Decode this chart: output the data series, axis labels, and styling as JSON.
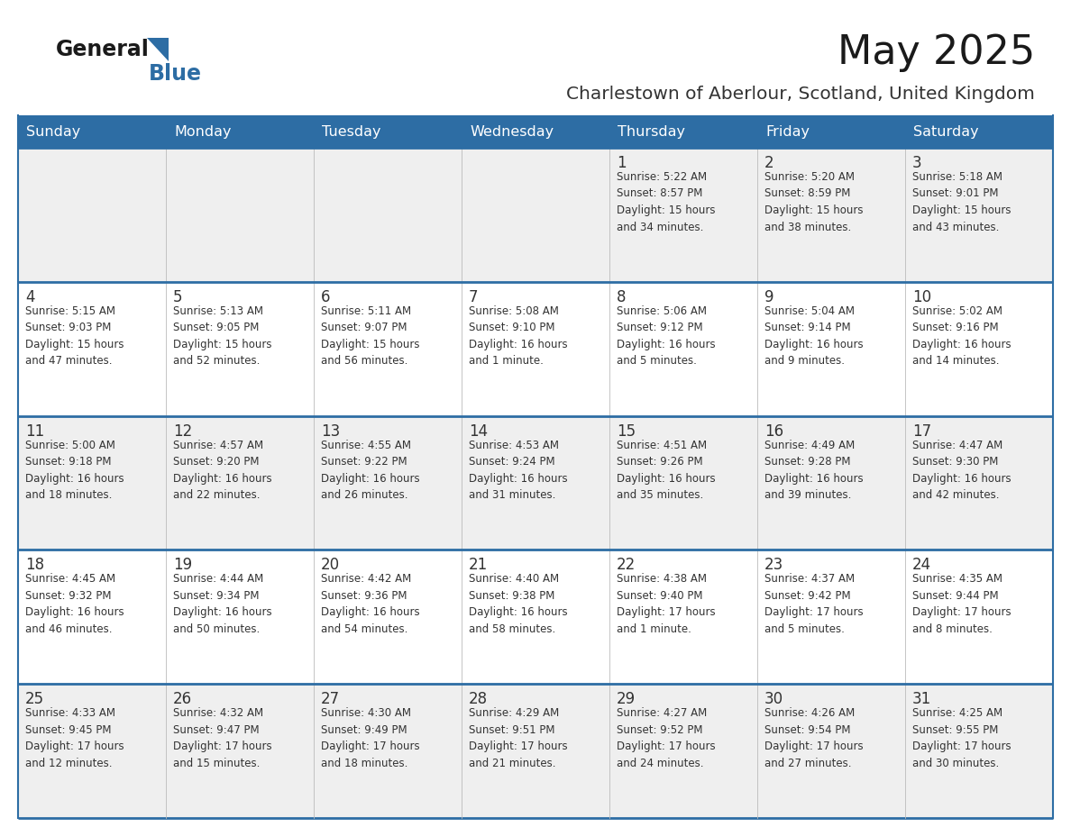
{
  "title": "May 2025",
  "subtitle": "Charlestown of Aberlour, Scotland, United Kingdom",
  "days_of_week": [
    "Sunday",
    "Monday",
    "Tuesday",
    "Wednesday",
    "Thursday",
    "Friday",
    "Saturday"
  ],
  "header_bg": "#2D6DA4",
  "header_text": "#FFFFFF",
  "cell_bg_odd": "#EFEFEF",
  "cell_bg_even": "#FFFFFF",
  "divider_color": "#2D6DA4",
  "text_color": "#333333",
  "title_color": "#1a1a1a",
  "subtitle_color": "#333333",
  "logo_general_color": "#1a1a1a",
  "logo_blue_color": "#2D6DA4",
  "weeks": [
    [
      {
        "day": null,
        "text": ""
      },
      {
        "day": null,
        "text": ""
      },
      {
        "day": null,
        "text": ""
      },
      {
        "day": null,
        "text": ""
      },
      {
        "day": 1,
        "text": "Sunrise: 5:22 AM\nSunset: 8:57 PM\nDaylight: 15 hours\nand 34 minutes."
      },
      {
        "day": 2,
        "text": "Sunrise: 5:20 AM\nSunset: 8:59 PM\nDaylight: 15 hours\nand 38 minutes."
      },
      {
        "day": 3,
        "text": "Sunrise: 5:18 AM\nSunset: 9:01 PM\nDaylight: 15 hours\nand 43 minutes."
      }
    ],
    [
      {
        "day": 4,
        "text": "Sunrise: 5:15 AM\nSunset: 9:03 PM\nDaylight: 15 hours\nand 47 minutes."
      },
      {
        "day": 5,
        "text": "Sunrise: 5:13 AM\nSunset: 9:05 PM\nDaylight: 15 hours\nand 52 minutes."
      },
      {
        "day": 6,
        "text": "Sunrise: 5:11 AM\nSunset: 9:07 PM\nDaylight: 15 hours\nand 56 minutes."
      },
      {
        "day": 7,
        "text": "Sunrise: 5:08 AM\nSunset: 9:10 PM\nDaylight: 16 hours\nand 1 minute."
      },
      {
        "day": 8,
        "text": "Sunrise: 5:06 AM\nSunset: 9:12 PM\nDaylight: 16 hours\nand 5 minutes."
      },
      {
        "day": 9,
        "text": "Sunrise: 5:04 AM\nSunset: 9:14 PM\nDaylight: 16 hours\nand 9 minutes."
      },
      {
        "day": 10,
        "text": "Sunrise: 5:02 AM\nSunset: 9:16 PM\nDaylight: 16 hours\nand 14 minutes."
      }
    ],
    [
      {
        "day": 11,
        "text": "Sunrise: 5:00 AM\nSunset: 9:18 PM\nDaylight: 16 hours\nand 18 minutes."
      },
      {
        "day": 12,
        "text": "Sunrise: 4:57 AM\nSunset: 9:20 PM\nDaylight: 16 hours\nand 22 minutes."
      },
      {
        "day": 13,
        "text": "Sunrise: 4:55 AM\nSunset: 9:22 PM\nDaylight: 16 hours\nand 26 minutes."
      },
      {
        "day": 14,
        "text": "Sunrise: 4:53 AM\nSunset: 9:24 PM\nDaylight: 16 hours\nand 31 minutes."
      },
      {
        "day": 15,
        "text": "Sunrise: 4:51 AM\nSunset: 9:26 PM\nDaylight: 16 hours\nand 35 minutes."
      },
      {
        "day": 16,
        "text": "Sunrise: 4:49 AM\nSunset: 9:28 PM\nDaylight: 16 hours\nand 39 minutes."
      },
      {
        "day": 17,
        "text": "Sunrise: 4:47 AM\nSunset: 9:30 PM\nDaylight: 16 hours\nand 42 minutes."
      }
    ],
    [
      {
        "day": 18,
        "text": "Sunrise: 4:45 AM\nSunset: 9:32 PM\nDaylight: 16 hours\nand 46 minutes."
      },
      {
        "day": 19,
        "text": "Sunrise: 4:44 AM\nSunset: 9:34 PM\nDaylight: 16 hours\nand 50 minutes."
      },
      {
        "day": 20,
        "text": "Sunrise: 4:42 AM\nSunset: 9:36 PM\nDaylight: 16 hours\nand 54 minutes."
      },
      {
        "day": 21,
        "text": "Sunrise: 4:40 AM\nSunset: 9:38 PM\nDaylight: 16 hours\nand 58 minutes."
      },
      {
        "day": 22,
        "text": "Sunrise: 4:38 AM\nSunset: 9:40 PM\nDaylight: 17 hours\nand 1 minute."
      },
      {
        "day": 23,
        "text": "Sunrise: 4:37 AM\nSunset: 9:42 PM\nDaylight: 17 hours\nand 5 minutes."
      },
      {
        "day": 24,
        "text": "Sunrise: 4:35 AM\nSunset: 9:44 PM\nDaylight: 17 hours\nand 8 minutes."
      }
    ],
    [
      {
        "day": 25,
        "text": "Sunrise: 4:33 AM\nSunset: 9:45 PM\nDaylight: 17 hours\nand 12 minutes."
      },
      {
        "day": 26,
        "text": "Sunrise: 4:32 AM\nSunset: 9:47 PM\nDaylight: 17 hours\nand 15 minutes."
      },
      {
        "day": 27,
        "text": "Sunrise: 4:30 AM\nSunset: 9:49 PM\nDaylight: 17 hours\nand 18 minutes."
      },
      {
        "day": 28,
        "text": "Sunrise: 4:29 AM\nSunset: 9:51 PM\nDaylight: 17 hours\nand 21 minutes."
      },
      {
        "day": 29,
        "text": "Sunrise: 4:27 AM\nSunset: 9:52 PM\nDaylight: 17 hours\nand 24 minutes."
      },
      {
        "day": 30,
        "text": "Sunrise: 4:26 AM\nSunset: 9:54 PM\nDaylight: 17 hours\nand 27 minutes."
      },
      {
        "day": 31,
        "text": "Sunrise: 4:25 AM\nSunset: 9:55 PM\nDaylight: 17 hours\nand 30 minutes."
      }
    ]
  ]
}
